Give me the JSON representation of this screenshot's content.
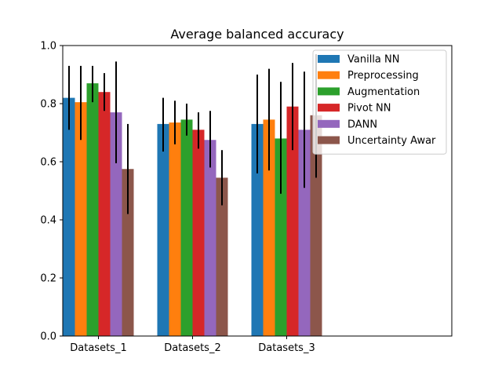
{
  "chart_data": {
    "type": "bar",
    "title": "Average balanced accuracy",
    "xlabel": "",
    "ylabel": "",
    "ylim": [
      0,
      1
    ],
    "yticks": [
      "0.0",
      "0.2",
      "0.4",
      "0.6",
      "0.8",
      "1.0"
    ],
    "categories": [
      "Datasets_1",
      "Datasets_2",
      "Datasets_3"
    ],
    "legend_position": "top-right",
    "grid": false,
    "error_bars": true,
    "series": [
      {
        "name": "Vanilla NN",
        "color": "#1f77b4",
        "values": [
          0.82,
          0.73,
          0.73
        ],
        "err_low": [
          0.71,
          0.635,
          0.56
        ],
        "err_high": [
          0.93,
          0.82,
          0.9
        ]
      },
      {
        "name": "Preprocessing",
        "color": "#ff7f0e",
        "values": [
          0.805,
          0.735,
          0.745
        ],
        "err_low": [
          0.675,
          0.66,
          0.57
        ],
        "err_high": [
          0.93,
          0.81,
          0.92
        ]
      },
      {
        "name": "Augmentation",
        "color": "#2ca02c",
        "values": [
          0.87,
          0.745,
          0.68
        ],
        "err_low": [
          0.805,
          0.69,
          0.49
        ],
        "err_high": [
          0.93,
          0.8,
          0.875
        ]
      },
      {
        "name": "Pivot NN",
        "color": "#d62728",
        "values": [
          0.84,
          0.71,
          0.79
        ],
        "err_low": [
          0.775,
          0.645,
          0.64
        ],
        "err_high": [
          0.905,
          0.77,
          0.94
        ]
      },
      {
        "name": "DANN",
        "color": "#9467bd",
        "values": [
          0.77,
          0.675,
          0.71
        ],
        "err_low": [
          0.595,
          0.58,
          0.51
        ],
        "err_high": [
          0.945,
          0.775,
          0.91
        ]
      },
      {
        "name": "Uncertainty Awar",
        "color": "#8c564b",
        "values": [
          0.575,
          0.545,
          0.76
        ],
        "err_low": [
          0.42,
          0.45,
          0.545
        ],
        "err_high": [
          0.73,
          0.64,
          0.97
        ]
      }
    ]
  }
}
